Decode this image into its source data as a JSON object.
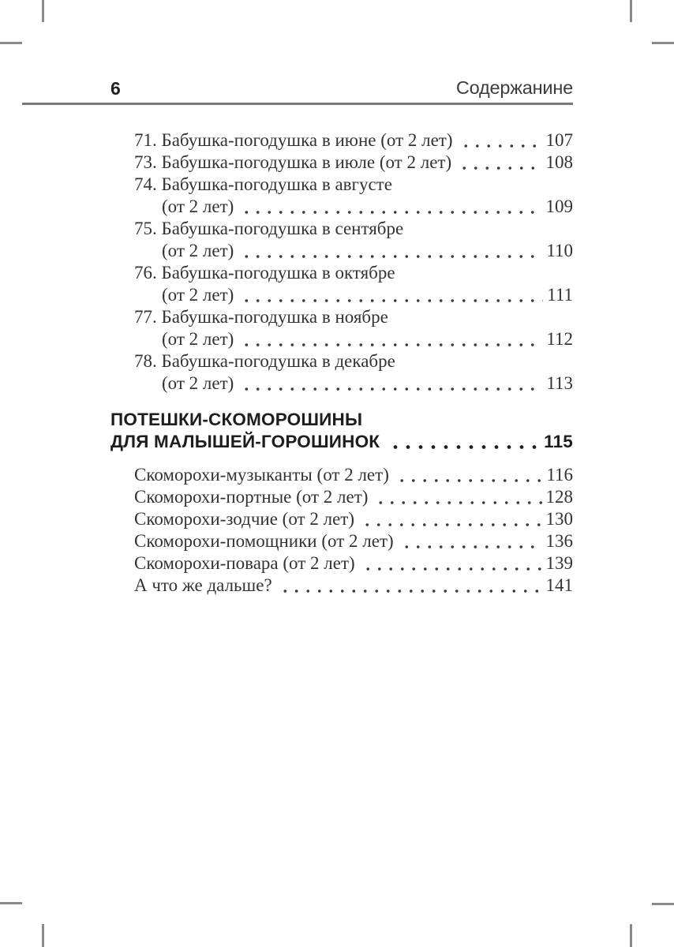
{
  "page": {
    "number": "6",
    "running_header": "Содержанине"
  },
  "toc": {
    "section1": {
      "entries": [
        {
          "label": "71. Бабушка-погодушка в июне (от 2 лет)",
          "page": "107"
        },
        {
          "label": "73. Бабушка-погодушка в июле (от 2 лет)",
          "page": "108"
        },
        {
          "label": "74. Бабушка-погодушка в августе",
          "cont": "(от 2 лет)",
          "page": "109"
        },
        {
          "label": "75. Бабушка-погодушка в сентябре",
          "cont": "(от 2 лет)",
          "page": "110"
        },
        {
          "label": "76. Бабушка-погодушка в октябре",
          "cont": "(от 2 лет)",
          "page": "111"
        },
        {
          "label": "77. Бабушка-погодушка в ноябре",
          "cont": "(от 2 лет)",
          "page": "112"
        },
        {
          "label": "78. Бабушка-погодушка в декабре",
          "cont": "(от 2 лет)",
          "page": "113"
        }
      ]
    },
    "section2": {
      "heading_line1": "ПОТЕШКИ-СКОМОРОШИНЫ",
      "heading_line2": "ДЛЯ МАЛЫШЕЙ-ГОРОШИНОК",
      "heading_page": "115",
      "entries": [
        {
          "label": "Скоморохи-музыканты (от 2 лет)",
          "page": "116"
        },
        {
          "label": "Скоморохи-портные (от 2 лет)",
          "page": "128"
        },
        {
          "label": "Скоморохи-зодчие (от 2 лет)",
          "page": "130"
        },
        {
          "label": "Скоморохи-помощники (от 2 лет)",
          "page": "136"
        },
        {
          "label": "Скоморохи-повара (от 2 лет)",
          "page": "139"
        },
        {
          "label": "А что же дальше?",
          "page": "141"
        }
      ]
    }
  },
  "colors": {
    "text": "#333333",
    "heading": "#1d1d1d",
    "rule": "#787878",
    "crop_mark": "#8a8a8a"
  }
}
